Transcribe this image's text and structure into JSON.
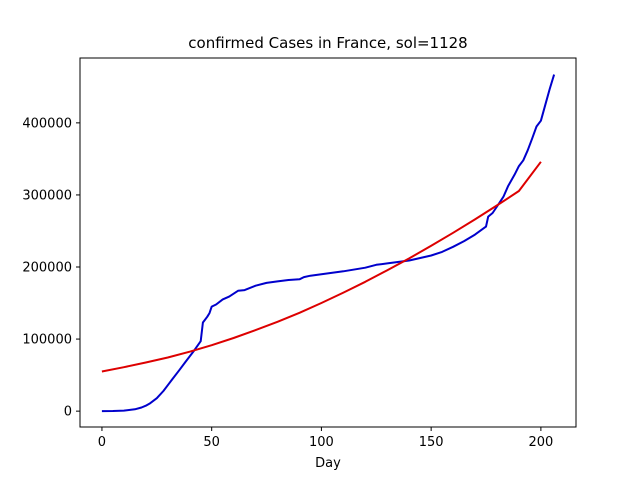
{
  "chart_data": {
    "type": "line",
    "title": "confirmed Cases in France, sol=1128",
    "xlabel": "Day",
    "ylabel": "",
    "xlim": [
      -10,
      216
    ],
    "ylim": [
      -22000,
      490000
    ],
    "x_ticks": [
      0,
      50,
      100,
      150,
      200
    ],
    "y_ticks": [
      0,
      100000,
      200000,
      300000,
      400000
    ],
    "grid": false,
    "series": [
      {
        "color": "#0000cc",
        "x": [
          0,
          5,
          10,
          15,
          18,
          20,
          22,
          25,
          28,
          30,
          32,
          35,
          38,
          40,
          42,
          45,
          46,
          47,
          48,
          49,
          50,
          52,
          55,
          58,
          60,
          62,
          65,
          70,
          75,
          80,
          85,
          90,
          92,
          95,
          100,
          110,
          120,
          125,
          130,
          140,
          150,
          155,
          160,
          165,
          170,
          175,
          176,
          178,
          180,
          183,
          185,
          188,
          190,
          192,
          194,
          196,
          198,
          200,
          202,
          204,
          206
        ],
        "y": [
          0,
          200,
          800,
          2500,
          5000,
          7500,
          11000,
          18000,
          28000,
          36000,
          44000,
          56000,
          68000,
          76000,
          84000,
          97000,
          123000,
          127000,
          131000,
          136000,
          145000,
          148000,
          155000,
          159000,
          163000,
          167000,
          168000,
          174000,
          178000,
          180000,
          182000,
          183000,
          186000,
          188000,
          190000,
          194000,
          199000,
          203000,
          205000,
          209000,
          216000,
          221000,
          228000,
          236000,
          245000,
          256000,
          270000,
          275000,
          284000,
          298000,
          312000,
          328000,
          340000,
          348000,
          362000,
          378000,
          395000,
          403000,
          425000,
          447000,
          467000
        ]
      },
      {
        "color": "#dd0000",
        "x": [
          0,
          10,
          20,
          30,
          40,
          50,
          60,
          70,
          80,
          90,
          100,
          110,
          120,
          130,
          140,
          150,
          160,
          170,
          180,
          190,
          200
        ],
        "y": [
          55000,
          61000,
          67500,
          74500,
          82500,
          91500,
          101500,
          112500,
          124000,
          136500,
          150000,
          164500,
          179500,
          195500,
          212000,
          229500,
          247500,
          266000,
          285500,
          305500,
          346000
        ]
      }
    ]
  }
}
